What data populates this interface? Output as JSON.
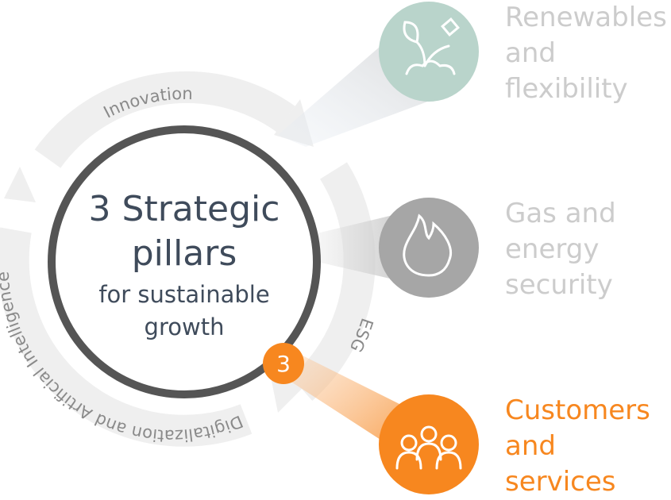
{
  "center": {
    "title_lines": [
      "3 Strategic",
      "pillars"
    ],
    "subtitle_lines": [
      "for sustainable",
      "growth"
    ],
    "badge": "3"
  },
  "ring_labels": [
    "Innovation",
    "ESG",
    "Digitalization and Artificial Intelligence"
  ],
  "pillars": [
    {
      "label_lines": [
        "Renewables",
        "and",
        "flexibility"
      ],
      "color": "#cccccc",
      "icon_color": "#b9d4cb"
    },
    {
      "label_lines": [
        "Gas and",
        "energy",
        "security"
      ],
      "color": "#cccccc",
      "icon_color": "#a6a6a6"
    },
    {
      "label_lines": [
        "Customers",
        "and",
        "services"
      ],
      "color": "#f7871f",
      "icon_color": "#f7871f"
    }
  ]
}
